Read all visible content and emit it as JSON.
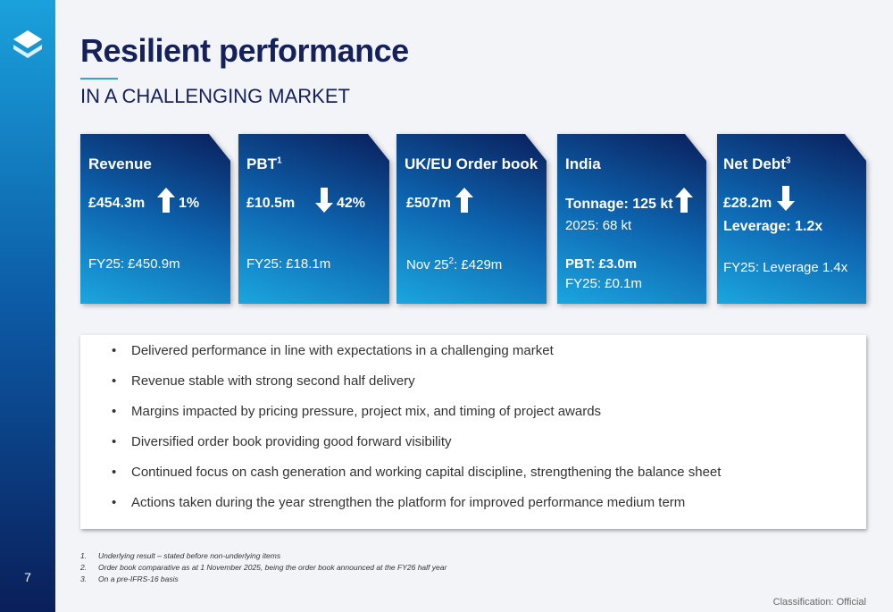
{
  "sidebar": {
    "page_number": "7"
  },
  "header": {
    "title": "Resilient performance",
    "subtitle": "IN A CHALLENGING MARKET"
  },
  "cards": [
    {
      "title": "Revenue",
      "value": "£454.3m",
      "change": "1%",
      "comparison": "FY25: £450.9m"
    },
    {
      "title": "PBT",
      "title_sup": "1",
      "value": "£10.5m",
      "change": "42%",
      "comparison": "FY25: £18.1m"
    },
    {
      "title": "UK/EU Order book",
      "value": "£507m",
      "comparison_label": "Nov 25",
      "comparison_sup": "2",
      "comparison_value": ": £429m"
    },
    {
      "title": "India",
      "value": "Tonnage: 125 kt",
      "value_comparison": "2025: 68 kt",
      "profit": "PBT: £3.0m",
      "comparison": "FY25: £0.1m"
    },
    {
      "title": "Net Debt",
      "title_sup": "3",
      "value": "£28.2m",
      "leverage": "Leverage: 1.2x",
      "comparison": "FY25: Leverage 1.4x"
    }
  ],
  "bullets": [
    "Delivered performance in line with expectations in a challenging market",
    "Revenue stable with strong second half delivery",
    "Margins impacted by pricing pressure, project mix, and timing of project awards",
    "Diversified order book providing good forward visibility",
    "Continued focus on cash generation and working capital discipline, strengthening the balance sheet",
    "Actions taken during the year strengthen the platform for improved performance medium term"
  ],
  "footnotes": [
    {
      "number": "1.",
      "text": "Underlying result – stated before non-underlying items"
    },
    {
      "number": "2.",
      "text": "Order book comparative as at 1 November 2025, being the order book announced at the FY26 half year"
    },
    {
      "number": "3.",
      "text": "On a pre-IFRS-16 basis"
    }
  ],
  "classification": "Classification: Official"
}
